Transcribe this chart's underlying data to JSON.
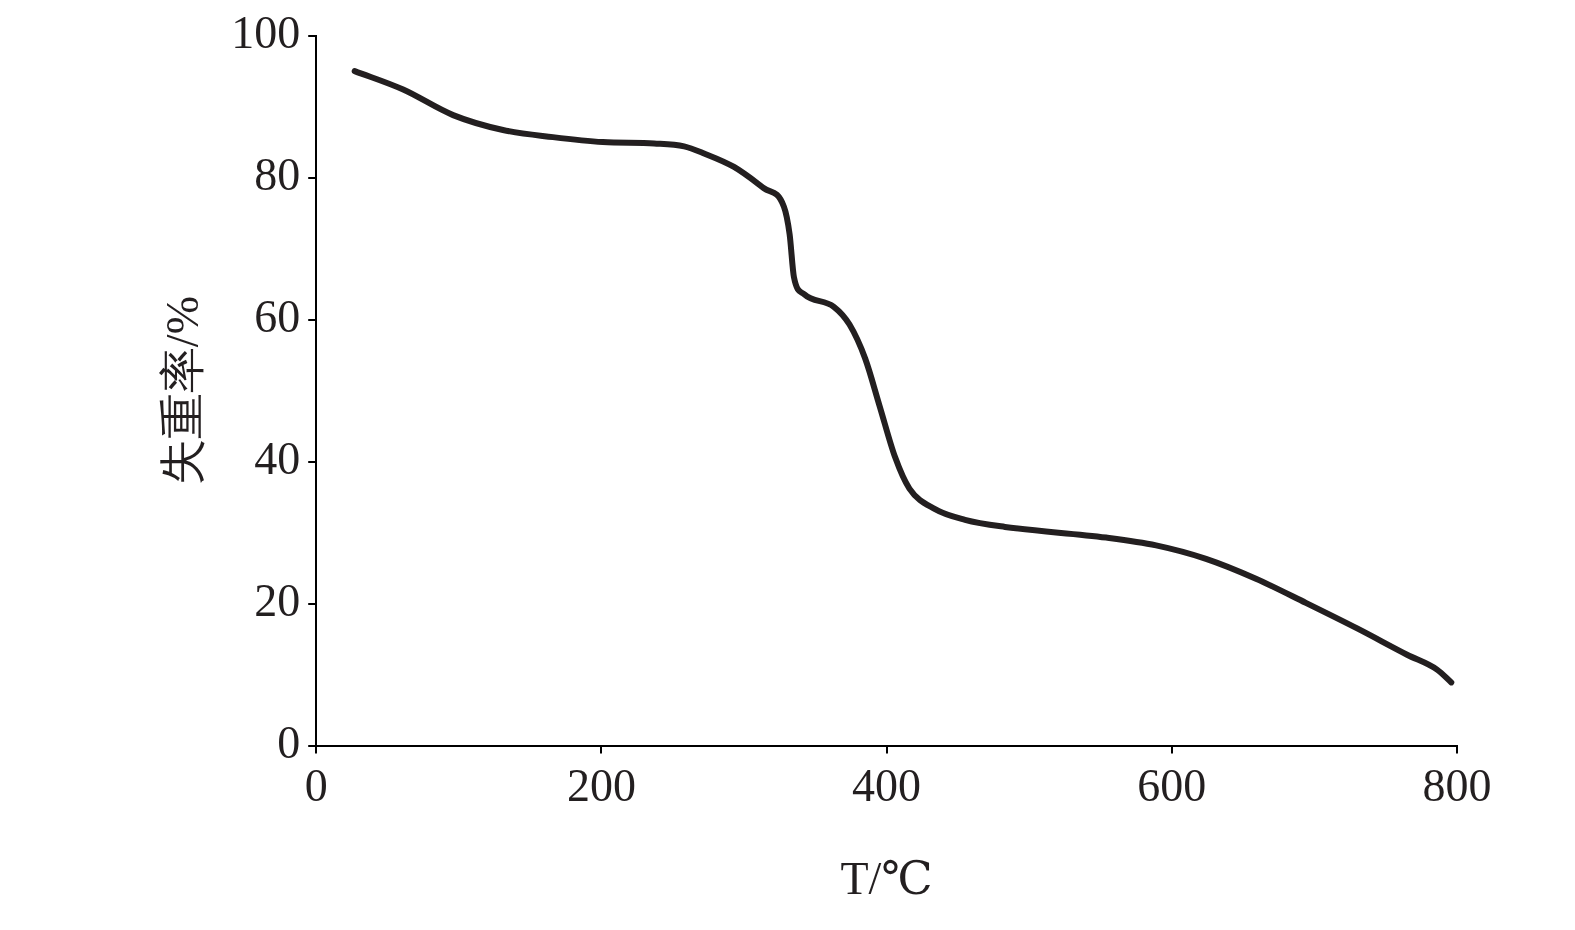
{
  "chart_data": {
    "type": "line",
    "xlabel": "T/℃",
    "ylabel": "失重率/%",
    "xlim": [
      0,
      800
    ],
    "xticks": [
      0,
      200,
      400,
      600,
      800
    ],
    "ylim": [
      0,
      100
    ],
    "yticks": [
      0,
      20,
      40,
      60,
      80,
      100
    ],
    "grid": false,
    "legend": false,
    "marker": "none",
    "line_style": "solid",
    "series": [
      {
        "color": "#231f20",
        "x": [
          27,
          61,
          96,
          131,
          166,
          201,
          237,
          258,
          272,
          293,
          314,
          328,
          332,
          335,
          342,
          363,
          374,
          385,
          395,
          406,
          416,
          434,
          455,
          483,
          554,
          589,
          624,
          659,
          694,
          730,
          765,
          786,
          796
        ],
        "values": [
          95,
          92.4,
          88.8,
          86.7,
          85.7,
          85,
          84.8,
          84.4,
          83.4,
          81.5,
          78.5,
          75.9,
          72,
          66,
          63.6,
          61.8,
          59.3,
          54.5,
          47.9,
          40.6,
          36.2,
          33.3,
          31.8,
          30.8,
          29.3,
          28.2,
          26.3,
          23.5,
          20.1,
          16.5,
          12.8,
          10.7,
          8.9
        ]
      }
    ]
  }
}
